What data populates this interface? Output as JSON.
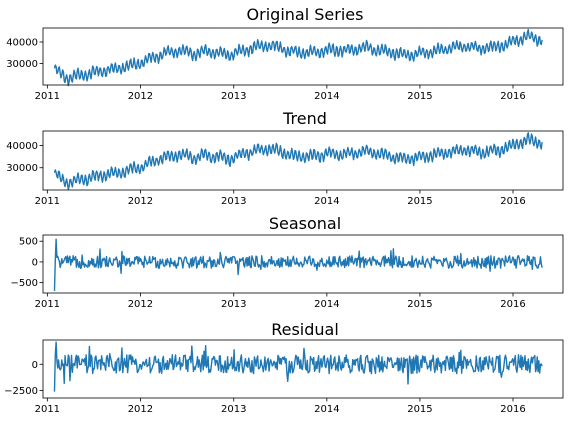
{
  "colors": {
    "line": "#1f77b4"
  },
  "chart_data": [
    {
      "type": "line",
      "title": "Original Series",
      "xlabel": "",
      "ylabel": "",
      "x_ticks": [
        "2011",
        "2012",
        "2013",
        "2014",
        "2015",
        "2016"
      ],
      "y_ticks": [
        30000,
        40000
      ],
      "y_tick_labels": [
        "30000",
        "40000"
      ],
      "xlim": [
        "2010-12-15",
        "2016-07-15"
      ],
      "ylim": [
        20000,
        46500
      ],
      "grid": false,
      "series": [
        {
          "kind": "level",
          "x_start": "2011-01-29",
          "x_end": "2016-04-24",
          "y": [
            27500,
            23000,
            24500,
            25500,
            27000,
            27500,
            29000,
            30500,
            33000,
            35000,
            36000,
            34500,
            35500,
            35000,
            34000,
            36000,
            37500,
            38500,
            37500,
            35500,
            35000,
            35500,
            36500,
            36000,
            36500,
            37500,
            36000,
            35000,
            34000,
            34500,
            35500,
            36500,
            37500,
            38000,
            37000,
            37500,
            38500,
            41000,
            42500,
            41000
          ]
        }
      ]
    },
    {
      "type": "line",
      "title": "Trend",
      "xlabel": "",
      "ylabel": "",
      "x_ticks": [
        "2011",
        "2012",
        "2013",
        "2014",
        "2015",
        "2016"
      ],
      "y_ticks": [
        30000,
        40000
      ],
      "y_tick_labels": [
        "30000",
        "40000"
      ],
      "xlim": [
        "2010-12-15",
        "2016-07-15"
      ],
      "ylim": [
        20000,
        46500
      ],
      "grid": false,
      "series": [
        {
          "kind": "level",
          "x_start": "2011-01-29",
          "x_end": "2016-04-24",
          "y": [
            27500,
            23000,
            24500,
            25500,
            27000,
            27500,
            29000,
            30500,
            33000,
            35000,
            36000,
            34500,
            35500,
            35000,
            34000,
            36000,
            37500,
            38500,
            37500,
            35500,
            35000,
            35500,
            36500,
            36000,
            36500,
            37500,
            36000,
            35000,
            34000,
            34500,
            35500,
            36500,
            37500,
            38000,
            37000,
            37500,
            38500,
            41000,
            42500,
            41000
          ]
        }
      ]
    },
    {
      "type": "line",
      "title": "Seasonal",
      "xlabel": "",
      "ylabel": "",
      "x_ticks": [
        "2011",
        "2012",
        "2013",
        "2014",
        "2015",
        "2016"
      ],
      "y_ticks": [
        -500,
        0,
        500
      ],
      "y_tick_labels": [
        "−500",
        "0",
        "500"
      ],
      "xlim": [
        "2010-12-15",
        "2016-07-15"
      ],
      "ylim": [
        -750,
        650
      ],
      "grid": false,
      "series": [
        {
          "kind": "noise",
          "x_start": "2011-01-29",
          "x_end": "2016-04-24",
          "amplitude": 150,
          "min": -700,
          "max": 550
        }
      ]
    },
    {
      "type": "line",
      "title": "Residual",
      "xlabel": "",
      "ylabel": "",
      "x_ticks": [
        "2011",
        "2012",
        "2013",
        "2014",
        "2015",
        "2016"
      ],
      "y_ticks": [
        -2500,
        0
      ],
      "y_tick_labels": [
        "−2500",
        "0"
      ],
      "xlim": [
        "2010-12-15",
        "2016-07-15"
      ],
      "ylim": [
        -3200,
        2300
      ],
      "grid": false,
      "series": [
        {
          "kind": "noise",
          "x_start": "2011-01-29",
          "x_end": "2016-04-24",
          "amplitude": 900,
          "min": -2600,
          "max": 2100
        }
      ]
    }
  ]
}
